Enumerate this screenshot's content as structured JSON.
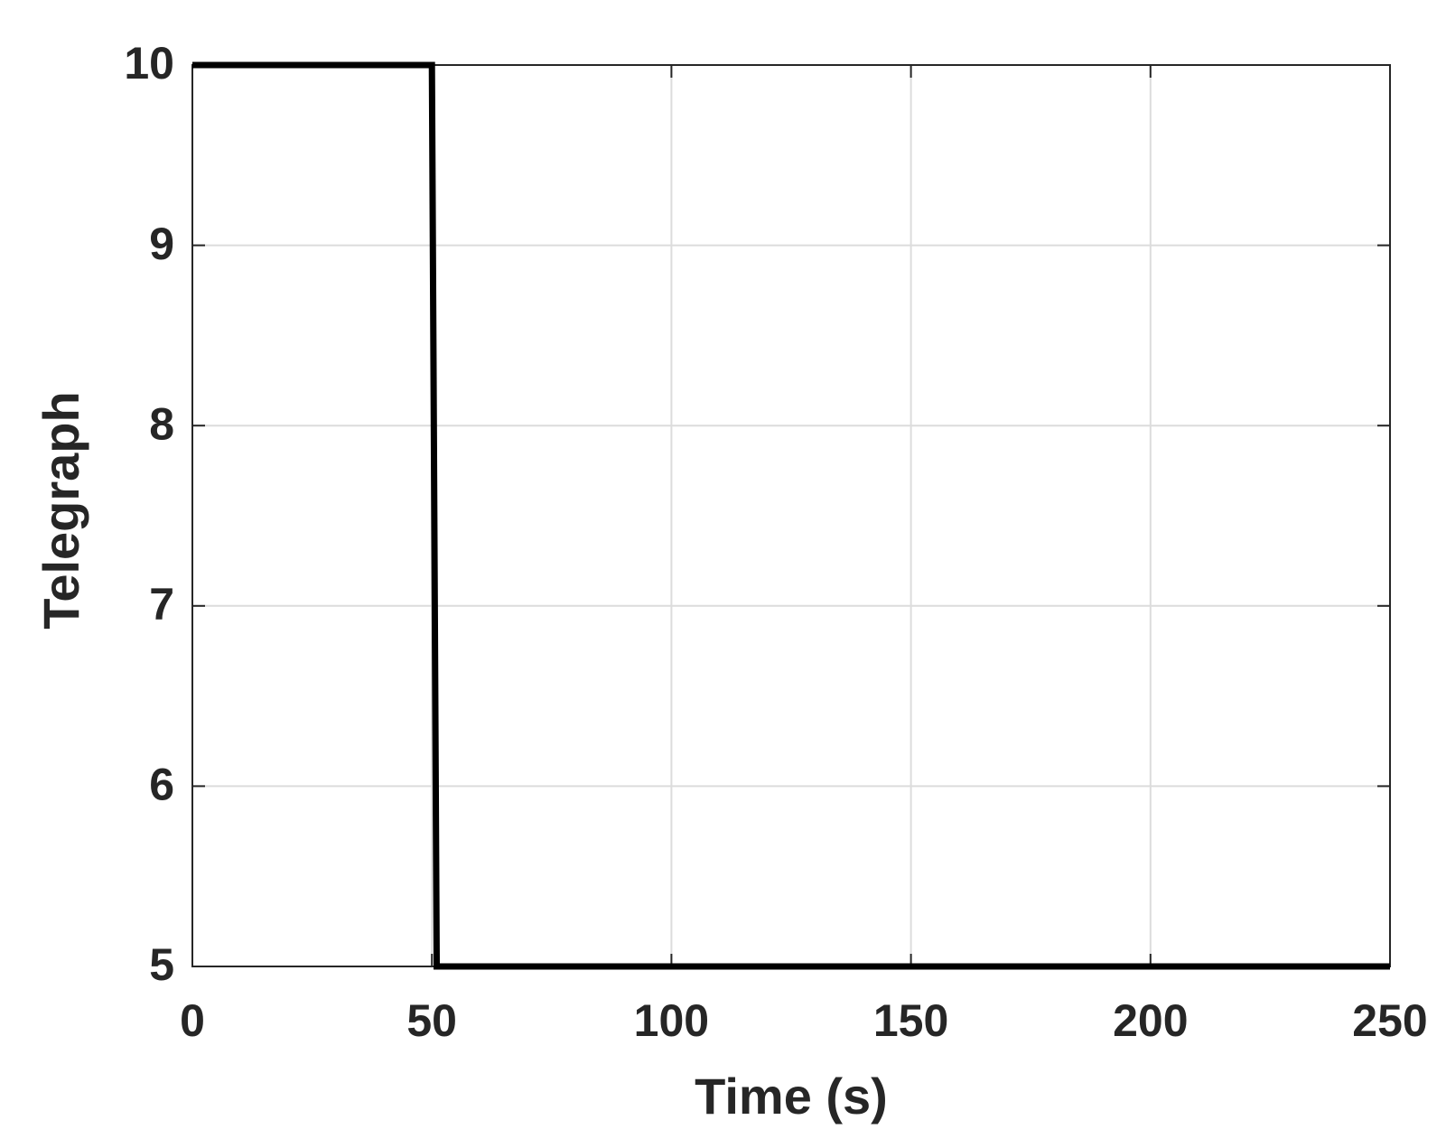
{
  "chart_data": {
    "type": "line",
    "x_label": "Time (s)",
    "y_label": "Telegraph",
    "x": [
      0,
      50,
      51,
      250
    ],
    "series": [
      {
        "color": "#000000",
        "values": [
          10,
          10,
          5,
          5
        ]
      }
    ],
    "xlim": [
      0,
      250
    ],
    "xticks": [
      0,
      50,
      100,
      150,
      200,
      250
    ],
    "ylim": [
      5,
      10
    ],
    "yticks": [
      5,
      6,
      7,
      8,
      9,
      10
    ],
    "grid": true
  }
}
